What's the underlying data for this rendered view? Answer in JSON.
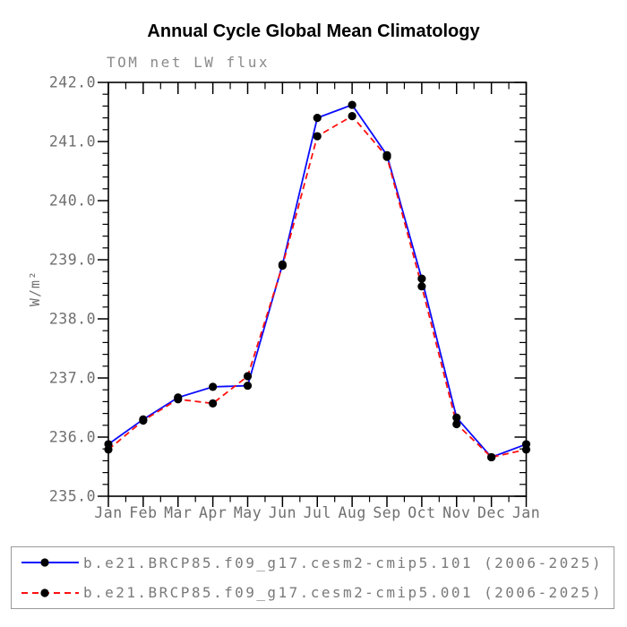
{
  "title": "Annual Cycle Global Mean Climatology",
  "colors": {
    "title_text": "#000000",
    "subtitle_text": "#8a8a8a",
    "tick_label_text": "#6f6f6f",
    "legend_text": "#7a7a7a",
    "axis_line": "#000000",
    "marker": "#000000",
    "series1_blue": "#0a0aff",
    "series2_red": "#ff1010",
    "legend_border": "#9a9a9a"
  },
  "chart_data": {
    "type": "line",
    "title": "Annual Cycle Global Mean Climatology",
    "subtitle": "TOM net LW flux",
    "xlabel": "",
    "ylabel": "W/m²",
    "categories": [
      "Jan",
      "Feb",
      "Mar",
      "Apr",
      "May",
      "Jun",
      "Jul",
      "Aug",
      "Sep",
      "Oct",
      "Nov",
      "Dec",
      "Jan"
    ],
    "ylim": [
      235.0,
      242.0
    ],
    "ytick_interval": 1.0,
    "yminor_interval": 0.2,
    "xminor_per_interval": 1,
    "grid": false,
    "legend_position": "bottom",
    "marker": "filled-black-circle",
    "series": [
      {
        "name": "b.e21.BRCP85.f09_g17.cesm2-cmip5.101 (2006-2025)",
        "color": "#0a0aff",
        "style": "solid",
        "values": [
          235.88,
          236.3,
          236.67,
          236.85,
          236.87,
          238.92,
          241.4,
          241.62,
          240.77,
          238.68,
          236.33,
          235.66,
          235.88
        ]
      },
      {
        "name": "b.e21.BRCP85.f09_g17.cesm2-cmip5.001 (2006-2025)",
        "color": "#ff1010",
        "style": "dashed",
        "values": [
          235.79,
          236.28,
          236.64,
          236.57,
          237.03,
          238.9,
          241.09,
          241.43,
          240.74,
          238.55,
          236.22,
          235.66,
          235.79
        ]
      }
    ]
  }
}
